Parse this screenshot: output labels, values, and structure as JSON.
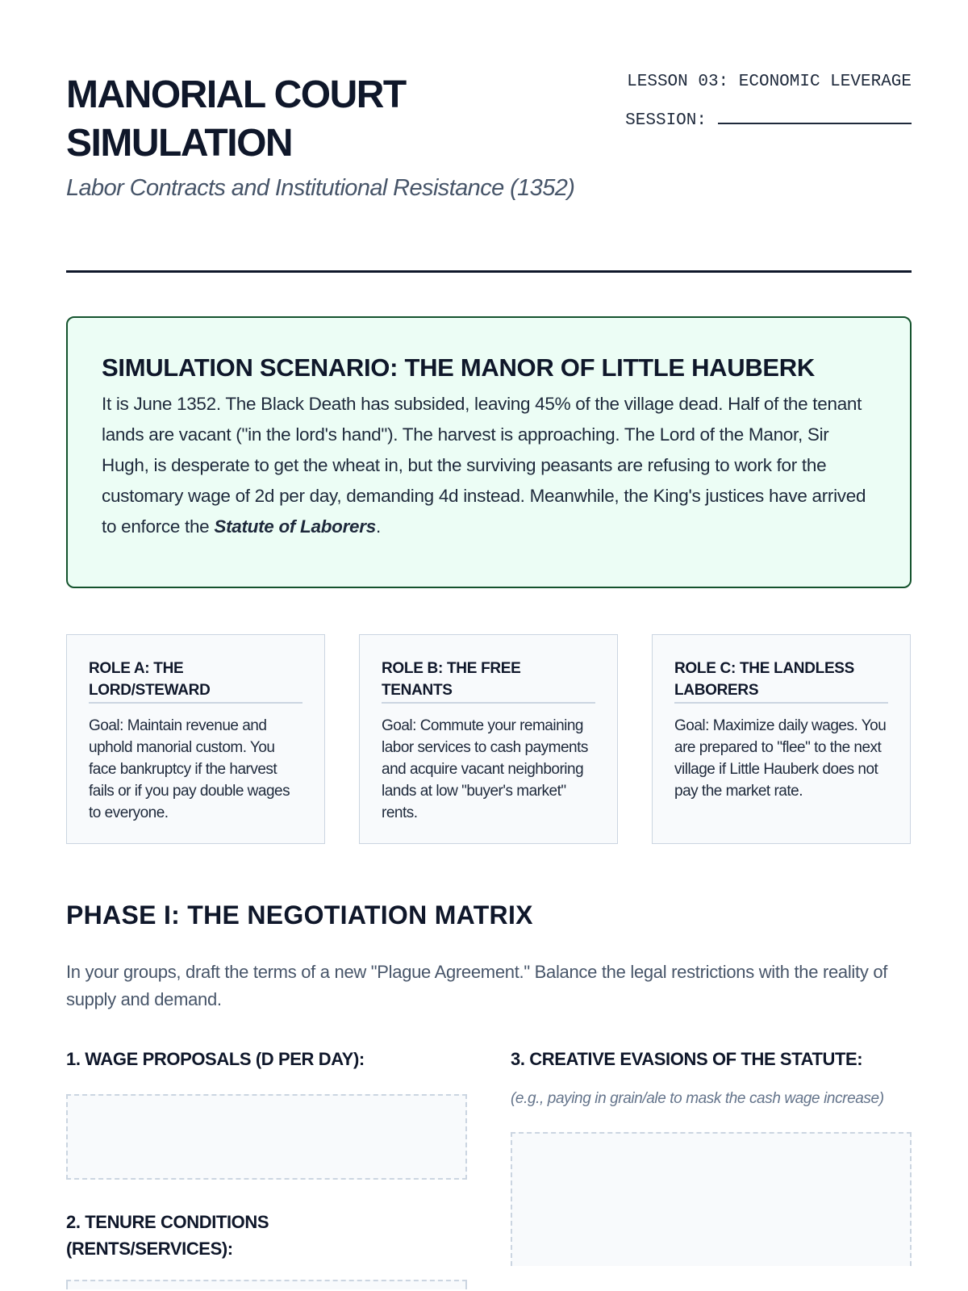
{
  "header": {
    "title": "MANORIAL COURT SIMULATION",
    "subtitle": "Labor Contracts and Institutional Resistance (1352)",
    "lesson": "LESSON 03: ECONOMIC LEVERAGE",
    "session_label": "SESSION:"
  },
  "scenario": {
    "title": "SIMULATION SCENARIO: THE MANOR OF LITTLE HAUBERK",
    "body": "It is June 1352. The Black Death has subsided, leaving 45% of the village dead. Half of the tenant lands are vacant (\"in the lord's hand\"). The harvest is approaching. The Lord of the Manor, Sir Hugh, is desperate to get the wheat in, but the surviving peasants are refusing to work for the customary wage of 2d per day, demanding 4d instead. Meanwhile, the King's justices have arrived to enforce the ",
    "emphasis": "Statute of Laborers",
    "end": "."
  },
  "roles": [
    {
      "title": "ROLE A: THE LORD/STEWARD",
      "goal": "Goal: Maintain revenue and uphold manorial custom. You face bankruptcy if the harvest fails or if you pay double wages to everyone."
    },
    {
      "title": "ROLE B: THE FREE TENANTS",
      "goal": "Goal: Commute your remaining labor services to cash payments and acquire vacant neighboring lands at low \"buyer's market\" rents."
    },
    {
      "title": "ROLE C: THE LANDLESS LABORERS",
      "goal": "Goal: Maximize daily wages. You are prepared to \"flee\" to the next village if Little Hauberk does not pay the market rate."
    }
  ],
  "phase": {
    "title": "PHASE I: THE NEGOTIATION MATRIX",
    "intro": "In your groups, draft the terms of a new \"Plague Agreement.\" Balance the legal restrictions with the reality of supply and demand.",
    "q1": "1. WAGE PROPOSALS (D PER DAY):",
    "q2": "2. TENURE CONDITIONS (RENTS/SERVICES):",
    "q3": "3. CREATIVE EVASIONS OF THE STATUTE:",
    "q3_hint": "(e.g., paying in grain/ale to mask the cash wage increase)"
  }
}
